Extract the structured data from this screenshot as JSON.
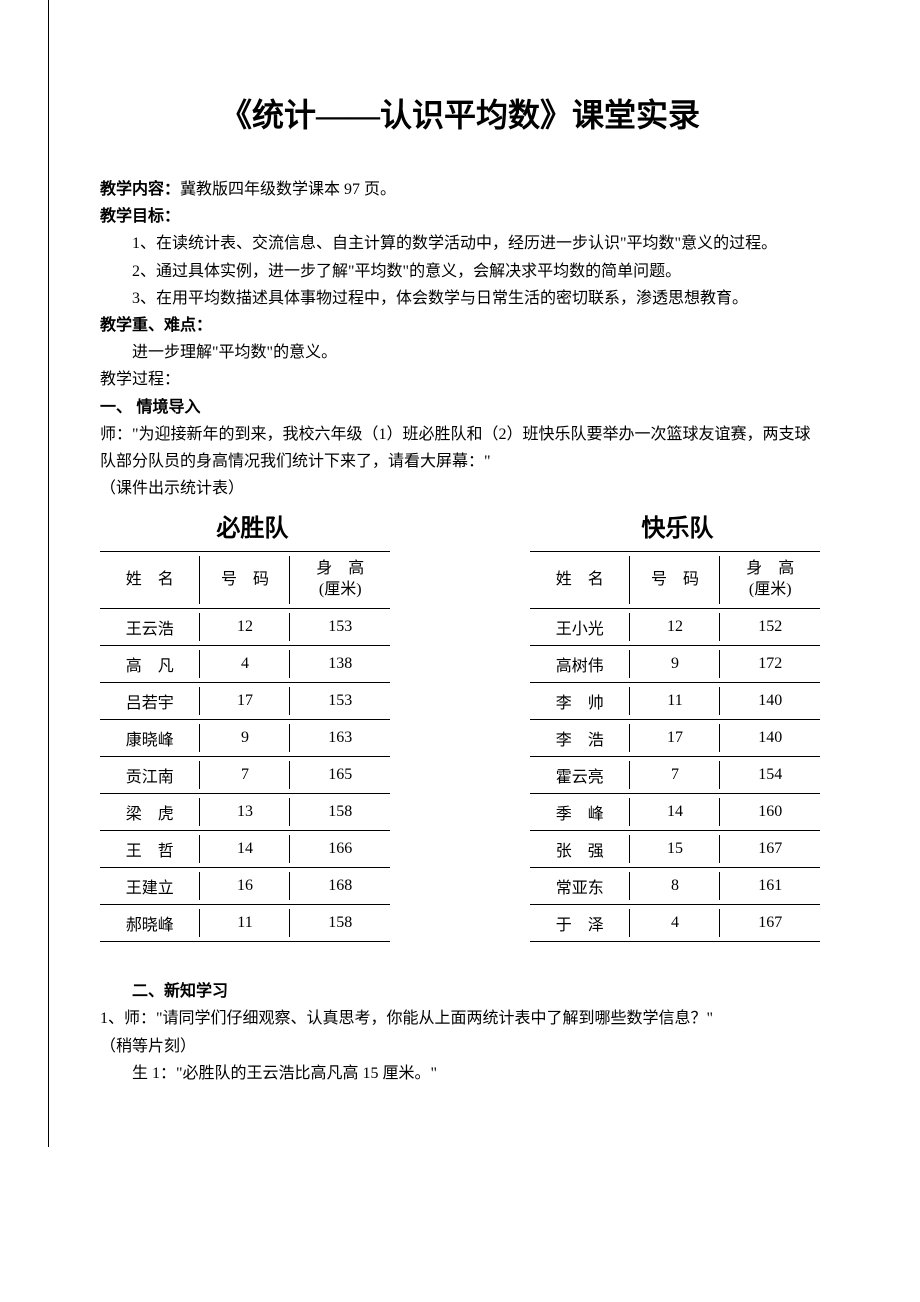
{
  "title": "《统计——认识平均数》课堂实录",
  "labels": {
    "content": "教学内容：",
    "content_text": "冀教版四年级数学课本 97 页。",
    "goal": "教学目标：",
    "goal_1": "1、在读统计表、交流信息、自主计算的数学活动中，经历进一步认识\"平均数\"意义的过程。",
    "goal_2": "2、通过具体实例，进一步了解\"平均数\"的意义，会解决求平均数的简单问题。",
    "goal_3": "3、在用平均数描述具体事物过程中，体会数学与日常生活的密切联系，渗透思想教育。",
    "difficulty": "教学重、难点：",
    "difficulty_text": "进一步理解\"平均数\"的意义。",
    "process": "教学过程：",
    "sec1": "一、  情境导入",
    "sec1_p1": "师：\"为迎接新年的到来，我校六年级（1）班必胜队和（2）班快乐队要举办一次篮球友谊赛，两支球队部分队员的身高情况我们统计下来了，请看大屏幕：\"",
    "sec1_p2": "（课件出示统计表）",
    "sec2": "二、新知学习",
    "sec2_p1": "1、师：\"请同学们仔细观察、认真思考，你能从上面两统计表中了解到哪些数学信息？\"",
    "sec2_p2": "（稍等片刻）",
    "sec2_p3": "生 1：\"必胜队的王云浩比高凡高 15 厘米。\""
  },
  "teams": {
    "left_name": "必胜队",
    "right_name": "快乐队",
    "headers": {
      "name": "姓　名",
      "num": "号　码",
      "height": "身　高\n(厘米)"
    }
  },
  "left_rows": [
    {
      "name": "王云浩",
      "num": "12",
      "height": "153"
    },
    {
      "name": "高　凡",
      "num": "4",
      "height": "138"
    },
    {
      "name": "吕若宇",
      "num": "17",
      "height": "153"
    },
    {
      "name": "康晓峰",
      "num": "9",
      "height": "163"
    },
    {
      "name": "贡江南",
      "num": "7",
      "height": "165"
    },
    {
      "name": "梁　虎",
      "num": "13",
      "height": "158"
    },
    {
      "name": "王　哲",
      "num": "14",
      "height": "166"
    },
    {
      "name": "王建立",
      "num": "16",
      "height": "168"
    },
    {
      "name": "郝晓峰",
      "num": "11",
      "height": "158"
    }
  ],
  "right_rows": [
    {
      "name": "王小光",
      "num": "12",
      "height": "152"
    },
    {
      "name": "高树伟",
      "num": "9",
      "height": "172"
    },
    {
      "name": "李　帅",
      "num": "11",
      "height": "140"
    },
    {
      "name": "李　浩",
      "num": "17",
      "height": "140"
    },
    {
      "name": "霍云亮",
      "num": "7",
      "height": "154"
    },
    {
      "name": "季　峰",
      "num": "14",
      "height": "160"
    },
    {
      "name": "张　强",
      "num": "15",
      "height": "167"
    },
    {
      "name": "常亚东",
      "num": "8",
      "height": "161"
    },
    {
      "name": "于　泽",
      "num": "4",
      "height": "167"
    }
  ]
}
